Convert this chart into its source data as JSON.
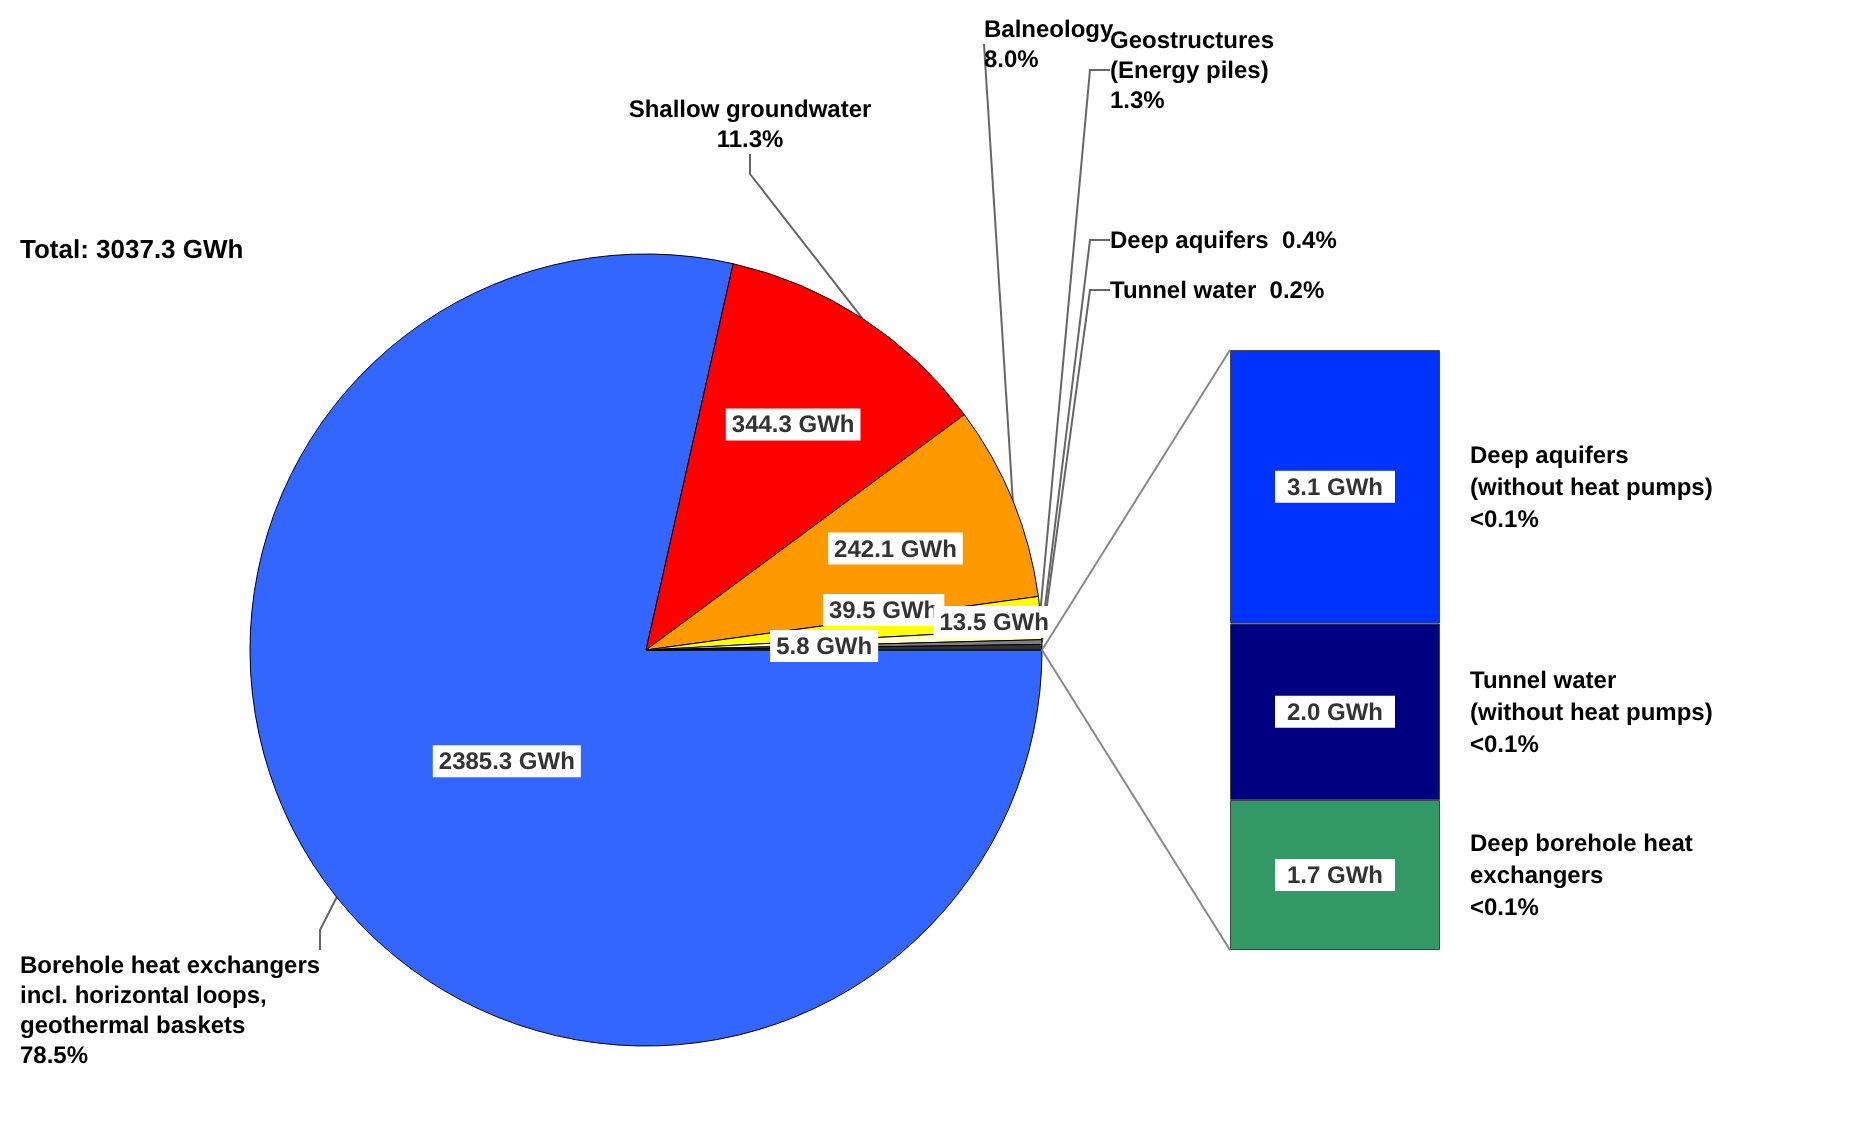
{
  "chart_data": [
    {
      "type": "pie",
      "annotations": [
        "Total: 3037.3 GWh"
      ],
      "categories": [
        "Borehole heat exchangers\nincl. horizontal loops,\ngeothermal baskets\n78.5%",
        "Shallow groundwater\n11.3%",
        "Balneology\n8.0%",
        "Geostructures\n(Energy piles)\n1.3%",
        "Deep aquifers  0.4%",
        "Tunnel water  0.2%",
        null
      ],
      "values": [
        2385.3,
        344.3,
        242.1,
        39.5,
        13.5,
        5.8,
        6.8
      ],
      "value_labels": [
        "2385.3 GWh",
        "344.3 GWh",
        "242.1 GWh",
        "39.5 GWh",
        "13.5 GWh",
        "5.8 GWh",
        null
      ],
      "colors": [
        "#3366ff",
        "#ff0000",
        "#ff9900",
        "#ffff00",
        "#ffffcc",
        "#808080",
        "#333333"
      ]
    },
    {
      "type": "bar",
      "stacked": true,
      "categories": [
        null
      ],
      "series": [
        {
          "name": "Deep borehole heat\nexchangers\n<0.1%",
          "color": "#339966",
          "values": [
            1.7
          ],
          "value_labels": [
            "1.7 GWh"
          ]
        },
        {
          "name": "Tunnel water\n(without heat pumps)\n<0.1%",
          "color": "#000080",
          "values": [
            2.0
          ],
          "value_labels": [
            "2.0 GWh"
          ]
        },
        {
          "name": "Deep aquifers\n(without heat pumps)\n<0.1%",
          "color": "#0033ff",
          "values": [
            3.1
          ],
          "value_labels": [
            "3.1 GWh"
          ]
        }
      ]
    }
  ]
}
